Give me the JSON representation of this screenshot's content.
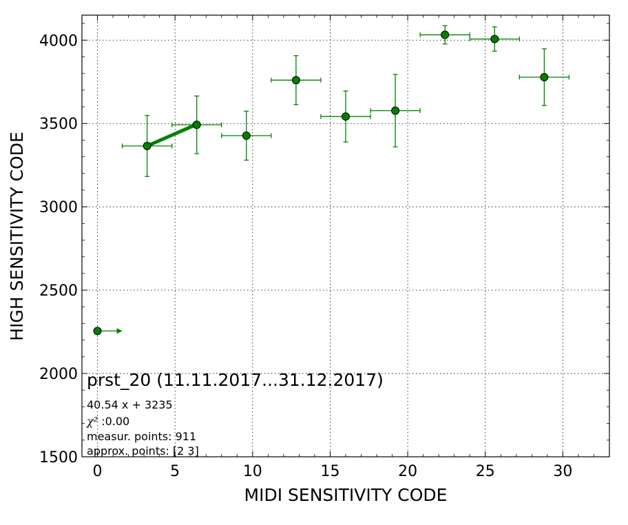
{
  "chart_data": {
    "type": "scatter",
    "xlabel": "MIDI SENSITIVITY CODE",
    "ylabel": "HIGH SENSITIVITY CODE",
    "xlim": [
      -1,
      33
    ],
    "ylim": [
      1500,
      4150
    ],
    "x_ticks": [
      0,
      5,
      10,
      15,
      20,
      25,
      30
    ],
    "y_ticks": [
      1500,
      2000,
      2500,
      3000,
      3500,
      4000
    ],
    "grid": true,
    "color": "#008000",
    "series": [
      {
        "points": [
          {
            "x": 0.0,
            "y": 2255,
            "xerr": 1.6,
            "yerr": 0
          },
          {
            "x": 3.2,
            "y": 3365,
            "xerr": 1.6,
            "yerr": 183
          },
          {
            "x": 6.4,
            "y": 3492,
            "xerr": 1.6,
            "yerr": 173
          },
          {
            "x": 9.6,
            "y": 3427,
            "xerr": 1.6,
            "yerr": 147
          },
          {
            "x": 12.8,
            "y": 3760,
            "xerr": 1.6,
            "yerr": 147
          },
          {
            "x": 16.0,
            "y": 3542,
            "xerr": 1.6,
            "yerr": 153
          },
          {
            "x": 19.2,
            "y": 3577,
            "xerr": 1.6,
            "yerr": 217
          },
          {
            "x": 22.4,
            "y": 4032,
            "xerr": 1.6,
            "yerr": 55
          },
          {
            "x": 25.6,
            "y": 4007,
            "xerr": 1.6,
            "yerr": 73
          },
          {
            "x": 28.8,
            "y": 3778,
            "xerr": 1.6,
            "yerr": 170
          }
        ]
      }
    ],
    "fit_line": {
      "x": [
        3.2,
        6.4
      ],
      "y": [
        3365,
        3495
      ]
    },
    "annotation": {
      "title": "prst_20 (11.11.2017...31.12.2017)",
      "formula": "40.54 x + 3235",
      "chi_symbol": "χ²",
      "chi_value": " :0.00",
      "measur_points": "measur. points: 911",
      "approx_points": "approx. points: [2 3]"
    }
  }
}
